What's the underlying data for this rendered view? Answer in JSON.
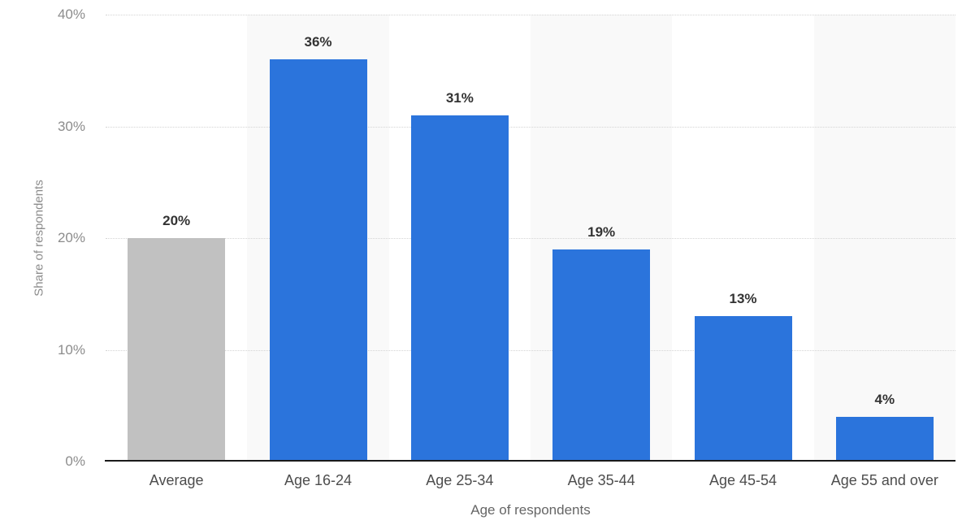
{
  "chart_data": {
    "type": "bar",
    "title": "",
    "categories": [
      "Average",
      "Age 16-24",
      "Age 25-34",
      "Age 35-44",
      "Age 45-54",
      "Age 55 and over"
    ],
    "values": [
      20,
      36,
      31,
      19,
      13,
      4
    ],
    "value_labels": [
      "20%",
      "36%",
      "31%",
      "19%",
      "13%",
      "4%"
    ],
    "xlabel": "Age of respondents",
    "ylabel": "Share of respondents",
    "ylim": [
      0,
      40
    ],
    "yticks": [
      {
        "value": 0,
        "label": "0%"
      },
      {
        "value": 10,
        "label": "10%"
      },
      {
        "value": 20,
        "label": "20%"
      },
      {
        "value": 30,
        "label": "30%"
      },
      {
        "value": 40,
        "label": "40%"
      }
    ],
    "grid": "horizontal-dotted",
    "legend": "none",
    "bar_colors": [
      "#c1c1c1",
      "#2b74dc",
      "#2b74dc",
      "#2b74dc",
      "#2b74dc",
      "#2b74dc"
    ],
    "shaded_columns": [
      1,
      3,
      5
    ],
    "band_color": "#f9f9f9"
  },
  "colors": {
    "background": "#ffffff",
    "bar_blue": "#2b74dc",
    "bar_gray": "#c1c1c1",
    "column_band": "#f9f9f9",
    "gridline": "#d4d4d4",
    "axis_line": "#1a1a1a",
    "tick_label": "#8c8c8c",
    "category_label": "#4d4d4d",
    "value_label": "#333333",
    "axis_title": "#666666"
  }
}
